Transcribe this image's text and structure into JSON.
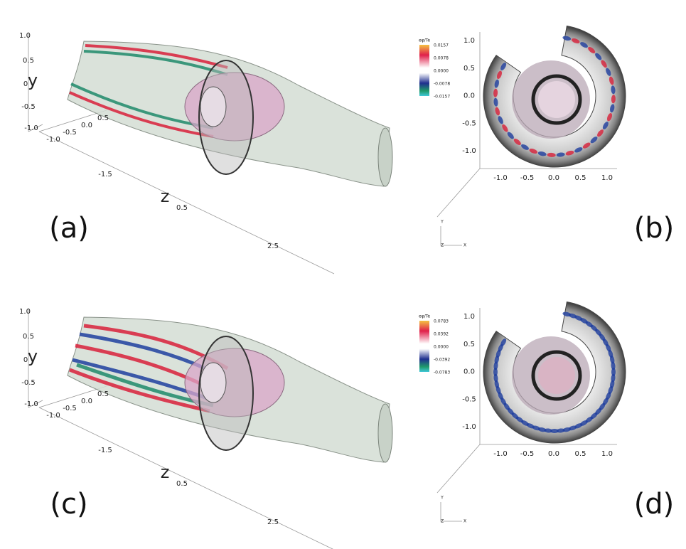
{
  "panels": [
    {
      "label": "(a)",
      "y_axis_title": "y",
      "z_axis_title": "z",
      "y_ticks": [
        "1.0",
        "0.5",
        "0",
        "-0.5",
        "-1.0"
      ],
      "x_ticks": [
        "-1.0",
        "-0.5",
        "0.0",
        "0.5"
      ],
      "z_ticks": [
        "-1.5",
        "0.5",
        "2.5"
      ]
    },
    {
      "label": "(b)",
      "colorbar": {
        "title": "eφ/Te",
        "labels": [
          "0.0157",
          "0.0078",
          "0.0000",
          "-0.0078",
          "-0.0157"
        ]
      },
      "y_ticks": [
        "1.0",
        "0.5",
        "0.0",
        "-0.5",
        "-1.0"
      ],
      "x_ticks": [
        "-1.0",
        "-0.5",
        "0.0",
        "0.5",
        "1.0"
      ],
      "triad": [
        "Y",
        "Z",
        "X"
      ]
    },
    {
      "label": "(c)",
      "y_axis_title": "y",
      "z_axis_title": "z",
      "y_ticks": [
        "1.0",
        "0.5",
        "0",
        "-0.5",
        "-1.0"
      ],
      "x_ticks": [
        "-1.0",
        "-0.5",
        "0.0",
        "0.5"
      ],
      "z_ticks": [
        "-1.5",
        "0.5",
        "2.5"
      ]
    },
    {
      "label": "(d)",
      "colorbar": {
        "title": "eφ/Te",
        "labels": [
          "0.0783",
          "0.0392",
          "0.0000",
          "-0.0392",
          "-0.0783"
        ]
      },
      "y_ticks": [
        "1.0",
        "0.5",
        "0.0",
        "-0.5",
        "-1.0"
      ],
      "x_ticks": [
        "-1.0",
        "-0.5",
        "0.0",
        "0.5",
        "1.0"
      ],
      "triad": [
        "Y",
        "Z",
        "X"
      ]
    }
  ]
}
